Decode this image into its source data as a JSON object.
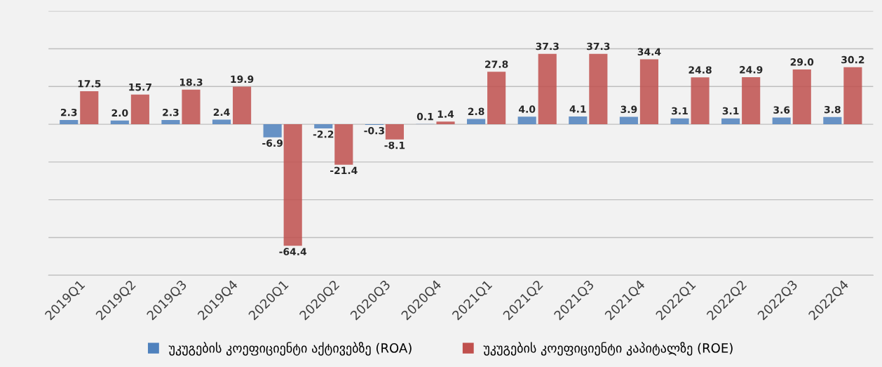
{
  "chart_data": {
    "type": "bar",
    "categories": [
      "2019Q1",
      "2019Q2",
      "2019Q3",
      "2019Q4",
      "2020Q1",
      "2020Q2",
      "2020Q3",
      "2020Q4",
      "2021Q1",
      "2021Q2",
      "2021Q3",
      "2021Q4",
      "2022Q1",
      "2022Q2",
      "2022Q3",
      "2022Q4"
    ],
    "series": [
      {
        "name": "უკუგების კოეფიციენტი აქტივებზე (ROA)",
        "color": "#4f81bd",
        "values": [
          2.3,
          2.0,
          2.3,
          2.4,
          -6.9,
          -2.2,
          -0.3,
          0.1,
          2.8,
          4.0,
          4.1,
          3.9,
          3.1,
          3.1,
          3.6,
          3.8
        ],
        "value_labels": [
          "2.3",
          "2.0",
          "2.3",
          "2.4",
          "-6.9",
          "-2.2",
          "-0.3",
          "0.1",
          "2.8",
          "4.0",
          "4.1",
          "3.9",
          "3.1",
          "3.1",
          "3.6",
          "3.8"
        ]
      },
      {
        "name": "უკუგების კოეფიციენტი კაპიტალზე (ROE)",
        "color": "#c0504d",
        "values": [
          17.5,
          15.7,
          18.3,
          19.9,
          -64.4,
          -21.4,
          -8.1,
          1.4,
          27.8,
          37.3,
          37.3,
          34.4,
          24.8,
          24.9,
          29.0,
          30.2
        ],
        "value_labels": [
          "17.5",
          "15.7",
          "18.3",
          "19.9",
          "-64.4",
          "-21.4",
          "-8.1",
          "1.4",
          "27.8",
          "37.3",
          "37.3",
          "34.4",
          "24.8",
          "24.9",
          "29.0",
          "30.2"
        ]
      }
    ],
    "ylim": [
      -80,
      60
    ],
    "yticks": [
      {
        "value": -80,
        "label": null
      },
      {
        "value": -60,
        "label": null
      },
      {
        "value": -40,
        "label": null
      },
      {
        "value": -20,
        "label": null
      },
      {
        "value": 0,
        "label": null
      },
      {
        "value": 20,
        "label": null
      },
      {
        "value": 40,
        "label": null
      },
      {
        "value": 60,
        "label": null
      }
    ],
    "tick_labels": "x",
    "grid": "y",
    "legend": "bottom"
  }
}
